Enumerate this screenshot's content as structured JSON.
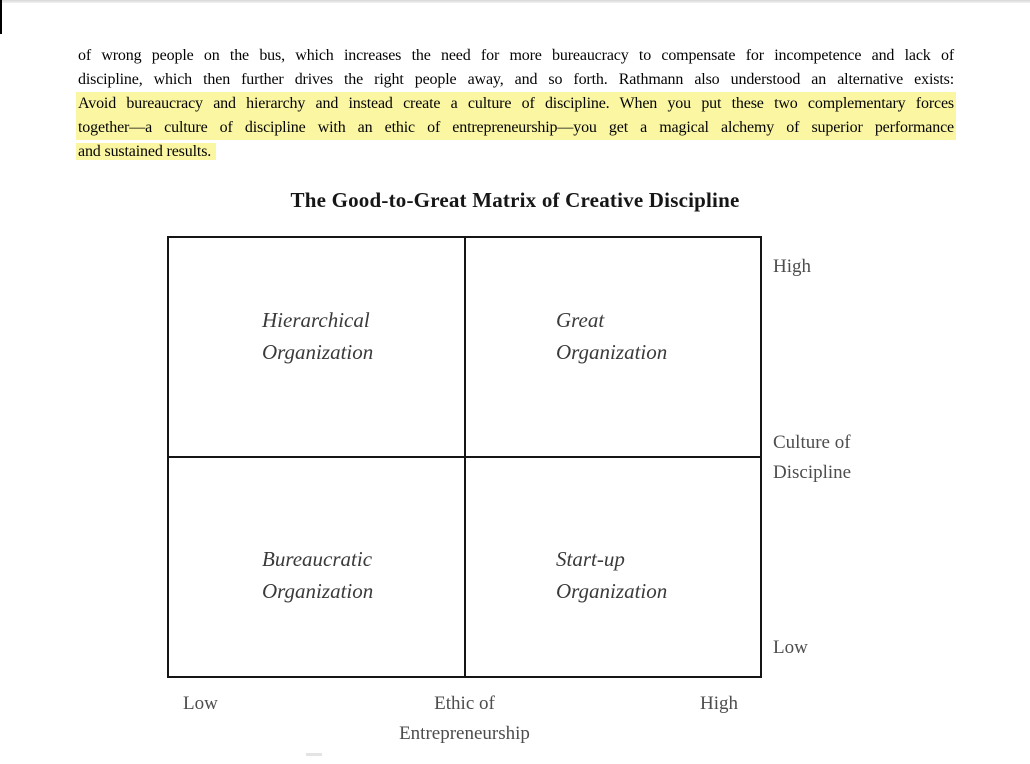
{
  "colors": {
    "highlight": "#FAF6A2",
    "matrix_border": "#151515",
    "quadrant_label": "#3A3A3A",
    "axis_label": "#4D4D4D",
    "body_text": "#050505"
  },
  "paragraph": {
    "line1": "of wrong people on the bus, which increases the need for more bureaucracy to compensate for incompetence and lack of",
    "line2": "discipline, which then further drives the right people away, and so forth. Rathmann also understood an alternative exists:",
    "line3": "Avoid bureaucracy and hierarchy and instead create a culture of discipline. When you put these two complementary forces",
    "line4": "together—a culture of discipline with an ethic of entrepreneurship—you get a magical alchemy of superior performance",
    "line5": "and sustained results."
  },
  "figure": {
    "title": "The Good-to-Great Matrix of Creative Discipline",
    "quadrants": {
      "top_left": {
        "line1": "Hierarchical",
        "line2": "Organization"
      },
      "top_right": {
        "line1": "Great",
        "line2": "Organization"
      },
      "bottom_left": {
        "line1": "Bureaucratic",
        "line2": "Organization"
      },
      "bottom_right": {
        "line1": "Start-up",
        "line2": "Organization"
      }
    },
    "y_axis": {
      "high": "High",
      "name_line1": "Culture of",
      "name_line2": "Discipline",
      "low": "Low"
    },
    "x_axis": {
      "low": "Low",
      "name_line1": "Ethic of",
      "name_line2": "Entrepreneurship",
      "high": "High"
    }
  }
}
